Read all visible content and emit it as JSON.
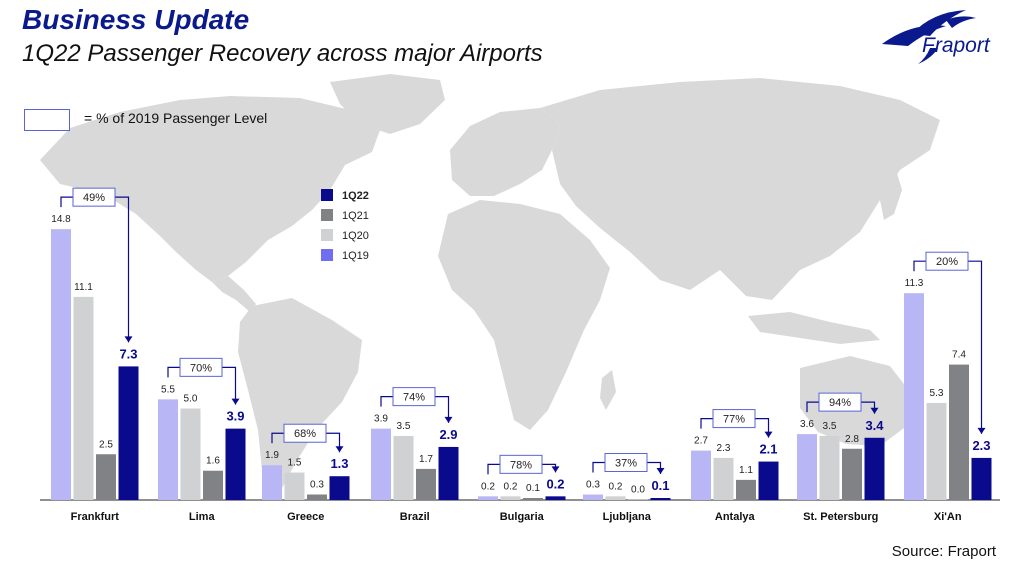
{
  "header": {
    "title": "Business Update",
    "subtitle": "1Q22 Passenger Recovery across major Airports"
  },
  "logo": {
    "text": "Fraport"
  },
  "key": {
    "text": "=  % of 2019 Passenger Level"
  },
  "source": "Source: Fraport",
  "colors": {
    "1Q22": "#0a0a8c",
    "1Q21": "#808285",
    "1Q20": "#d0d1d3",
    "1Q19": "#b8b6f4",
    "legend_1Q19": "#6f6ef0",
    "map": "#d9d9d9",
    "brand": "#0a1a8c"
  },
  "chart_data": {
    "type": "bar",
    "categories": [
      "Frankfurt",
      "Lima",
      "Greece",
      "Brazil",
      "Bulgaria",
      "Ljubljana",
      "Antalya",
      "St. Petersburg",
      "Xi'An"
    ],
    "series": [
      {
        "name": "1Q19",
        "values": [
          14.8,
          5.5,
          1.9,
          3.9,
          0.2,
          0.3,
          2.7,
          3.6,
          11.3
        ]
      },
      {
        "name": "1Q20",
        "values": [
          11.1,
          5.0,
          1.5,
          3.5,
          0.2,
          0.2,
          2.3,
          3.5,
          5.3
        ]
      },
      {
        "name": "1Q21",
        "values": [
          2.5,
          1.6,
          0.3,
          1.7,
          0.1,
          0.0,
          1.1,
          2.8,
          7.4
        ]
      },
      {
        "name": "1Q22",
        "values": [
          7.3,
          3.9,
          1.3,
          2.9,
          0.2,
          0.1,
          2.1,
          3.4,
          2.3
        ]
      }
    ],
    "value_labels": [
      [
        "14.8",
        "11.1",
        "2.5",
        "7.3"
      ],
      [
        "5.5",
        "5.0",
        "1.6",
        "3.9"
      ],
      [
        "1.9",
        "1.5",
        "0.3",
        "1.3"
      ],
      [
        "3.9",
        "3.5",
        "1.7",
        "2.9"
      ],
      [
        "0.2",
        "0.2",
        "0.1",
        "0.2"
      ],
      [
        "0.3",
        "0.2",
        "0.0",
        "0.1"
      ],
      [
        "2.7",
        "2.3",
        "1.1",
        "2.1"
      ],
      [
        "3.6",
        "3.5",
        "2.8",
        "3.4"
      ],
      [
        "11.3",
        "5.3",
        "7.4",
        "2.3"
      ]
    ],
    "recovery_pct": [
      "49%",
      "70%",
      "68%",
      "74%",
      "78%",
      "37%",
      "77%",
      "94%",
      "20%"
    ],
    "legend": [
      "1Q22",
      "1Q21",
      "1Q20",
      "1Q19"
    ],
    "legend_position": "upper-left over map",
    "title": "1Q22 Passenger Recovery across major Airports"
  }
}
